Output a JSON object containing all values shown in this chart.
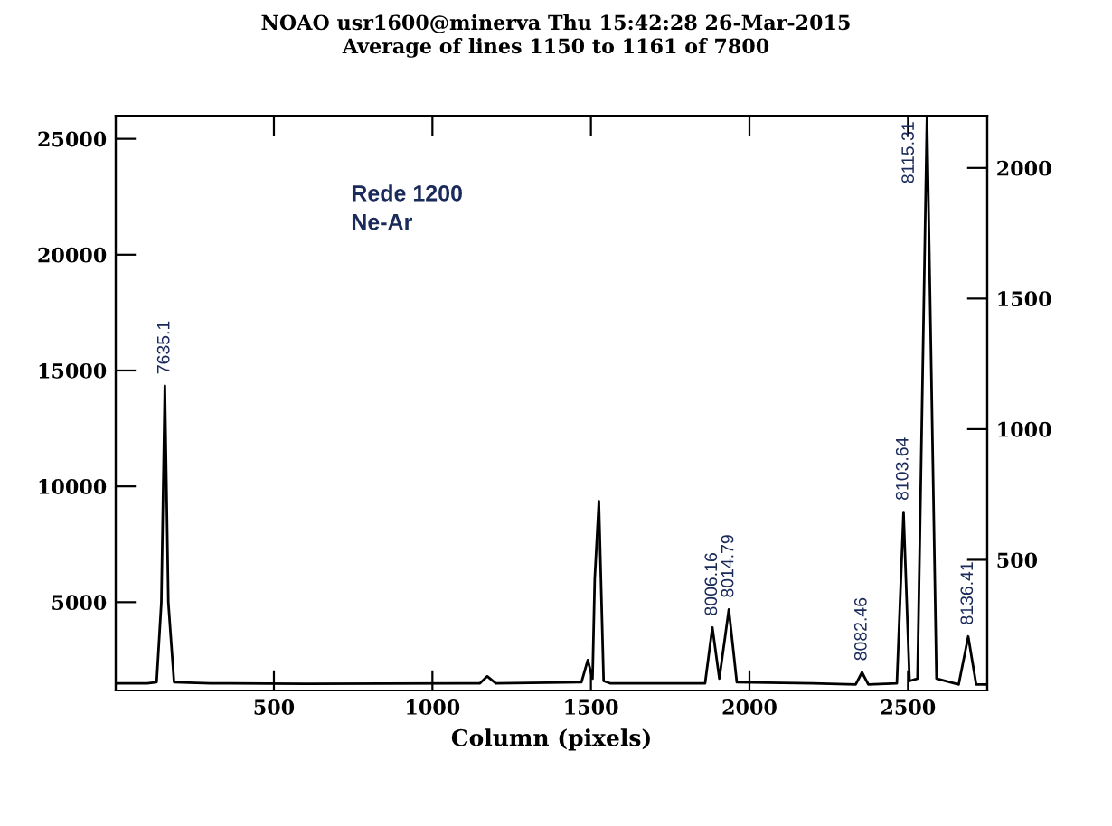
{
  "chart_data": {
    "type": "line",
    "title": "NOAO usr1600@minerva Thu 15:42:28 26-Mar-2015",
    "subtitle": "Average of lines 1150 to 1161 of 7800",
    "xlabel": "Column (pixels)",
    "x": [
      1,
      100,
      130,
      145,
      156,
      167,
      185,
      300,
      600,
      1150,
      1173,
      1200,
      1470,
      1490,
      1505,
      1512,
      1525,
      1540,
      1560,
      1860,
      1883,
      1905,
      1935,
      1960,
      2200,
      2335,
      2355,
      2375,
      2465,
      2486,
      2505,
      2530,
      2560,
      2590,
      2660,
      2690,
      2715,
      2750
    ],
    "series": [
      {
        "color": "#000000",
        "values": [
          1500,
          1500,
          1550,
          5000,
          14340,
          5000,
          1550,
          1500,
          1480,
          1500,
          1800,
          1500,
          1550,
          2500,
          1700,
          6000,
          9360,
          1600,
          1500,
          1500,
          3910,
          1700,
          4690,
          1550,
          1500,
          1450,
          1970,
          1450,
          1500,
          8890,
          1600,
          1700,
          26000,
          1700,
          1450,
          3520,
          1450,
          1450
        ]
      }
    ],
    "xlim": [
      1,
      2750
    ],
    "ylim": [
      1190,
      26000
    ],
    "y2lim": [
      0,
      2200
    ],
    "xticks": [
      500,
      1000,
      1500,
      2000,
      2500
    ],
    "yticks": [
      5000,
      10000,
      15000,
      20000,
      25000
    ],
    "y2ticks": [
      500,
      1000,
      1500,
      2000
    ],
    "grid": false,
    "legend": false,
    "marker": "none",
    "line_style": "solid",
    "annotations": [
      {
        "text": "7635.1",
        "x": 156,
        "y": 14340
      },
      {
        "text": "8006.16",
        "x": 1883,
        "y": 3910
      },
      {
        "text": "8014.79",
        "x": 1935,
        "y": 4690
      },
      {
        "text": "8082.46",
        "x": 2355,
        "y": 1970
      },
      {
        "text": "8103.64",
        "x": 2486,
        "y": 8890
      },
      {
        "text": "8115.31",
        "x": 2560,
        "y": 26000
      },
      {
        "text": "8136.41",
        "x": 2690,
        "y": 3520
      },
      "Rede 1200",
      "Ne-Ar"
    ]
  }
}
